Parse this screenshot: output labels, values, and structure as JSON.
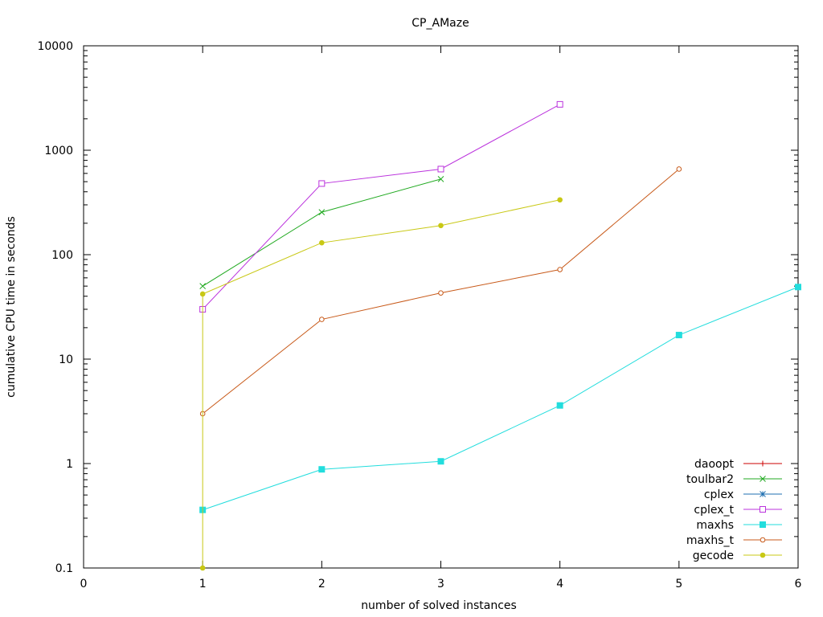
{
  "chart_data": {
    "type": "line",
    "title": "CP_AMaze",
    "xlabel": "number of solved instances",
    "ylabel": "cumulative CPU time in seconds",
    "xlim": [
      0,
      6
    ],
    "ylim": [
      0.1,
      10000
    ],
    "yscale": "log",
    "xticks": [
      "0",
      "1",
      "2",
      "3",
      "4",
      "5",
      "6"
    ],
    "yticks": [
      "0.1",
      "1",
      "10",
      "100",
      "1000",
      "10000"
    ],
    "legend_position": "bottom-right",
    "series": [
      {
        "name": "daoopt",
        "color": "#cc0000",
        "marker": "plus",
        "x": [],
        "y": []
      },
      {
        "name": "toulbar2",
        "color": "#22aa22",
        "marker": "cross",
        "x": [
          1,
          2,
          3
        ],
        "y": [
          50,
          255,
          530
        ]
      },
      {
        "name": "cplex",
        "color": "#1f6fb0",
        "marker": "star",
        "x": [],
        "y": []
      },
      {
        "name": "cplex_t",
        "color": "#bb33dd",
        "marker": "square",
        "x": [
          1,
          2,
          3,
          4
        ],
        "y": [
          30,
          480,
          660,
          2750
        ]
      },
      {
        "name": "maxhs",
        "color": "#22dddd",
        "marker": "filled-square",
        "x": [
          1,
          2,
          3,
          4,
          5,
          6
        ],
        "y": [
          0.36,
          0.88,
          1.05,
          3.6,
          17,
          49
        ]
      },
      {
        "name": "maxhs_t",
        "color": "#c85a1a",
        "marker": "circle",
        "x": [
          1,
          2,
          3,
          4,
          5
        ],
        "y": [
          3,
          24,
          43,
          72,
          660
        ]
      },
      {
        "name": "gecode",
        "color": "#c8c814",
        "marker": "filled-circle",
        "x": [
          1,
          1,
          2,
          3,
          4
        ],
        "y": [
          0.1,
          42,
          130,
          190,
          335
        ]
      }
    ]
  }
}
